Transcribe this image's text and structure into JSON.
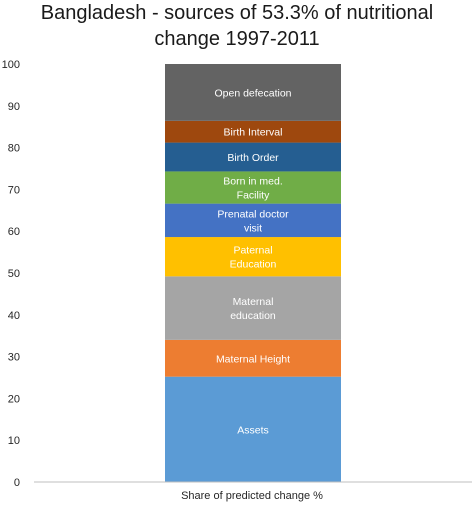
{
  "chart_data": {
    "type": "bar",
    "stacked": true,
    "title_line1": "Bangladesh - sources of 53.3% of nutritional",
    "title_line2": "change 1997-2011",
    "xlabel": "Share of predicted change %",
    "ylabel": "",
    "ylim": [
      0,
      100
    ],
    "yticks": [
      0,
      10,
      20,
      30,
      40,
      50,
      60,
      70,
      80,
      90,
      100
    ],
    "grid": false,
    "legend": "none",
    "segments": [
      {
        "label_lines": [
          "Assets"
        ],
        "value": 25.2,
        "color": "#5b9bd5"
      },
      {
        "label_lines": [
          "Maternal Height"
        ],
        "value": 8.8,
        "color": "#ed7d31"
      },
      {
        "label_lines": [
          "Maternal",
          "education"
        ],
        "value": 15.2,
        "color": "#a5a5a5"
      },
      {
        "label_lines": [
          "Paternal",
          "Education"
        ],
        "value": 9.4,
        "color": "#ffc000"
      },
      {
        "label_lines": [
          "Prenatal doctor",
          "visit"
        ],
        "value": 8.0,
        "color": "#4472c4"
      },
      {
        "label_lines": [
          "Born in med.",
          "Facility"
        ],
        "value": 7.7,
        "color": "#70ad47"
      },
      {
        "label_lines": [
          "Birth Order"
        ],
        "value": 6.9,
        "color": "#255e91"
      },
      {
        "label_lines": [
          "Birth Interval"
        ],
        "value": 5.2,
        "color": "#9e480e"
      },
      {
        "label_lines": [
          "Open defecation"
        ],
        "value": 13.6,
        "color": "#636363"
      }
    ]
  }
}
